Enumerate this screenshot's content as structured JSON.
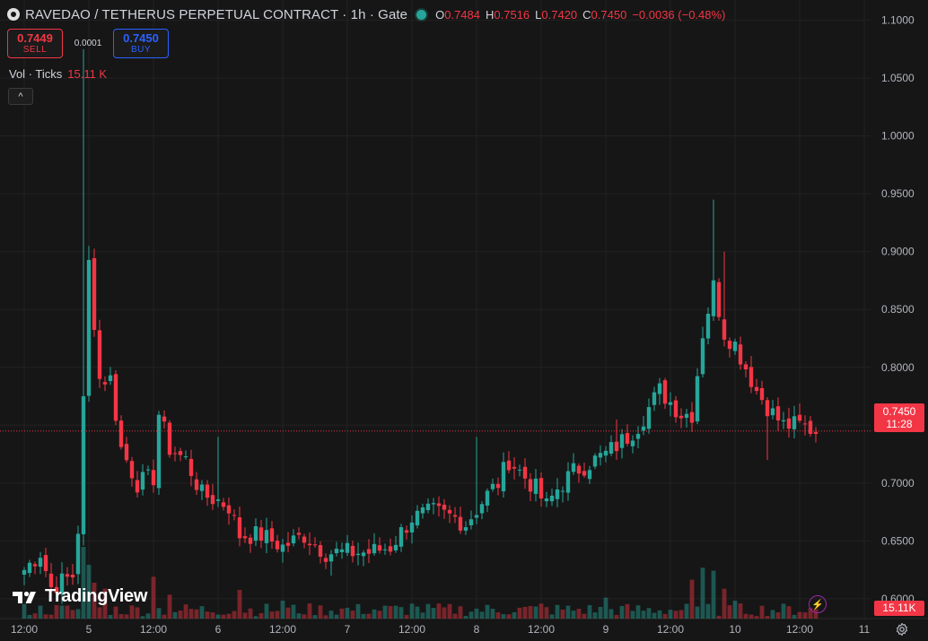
{
  "header": {
    "symbol": "RAVEDAO / TETHERUS PERPETUAL CONTRACT · 1h · Gate",
    "ohlc": {
      "o_label": "O",
      "o": "0.7484",
      "h_label": "H",
      "h": "0.7516",
      "l_label": "L",
      "l": "0.7420",
      "c_label": "C",
      "c": "0.7450",
      "change": "−0.0036 (−0.48%)"
    }
  },
  "trade": {
    "sell_price": "0.7449",
    "sell_label": "SELL",
    "spread": "0.0001",
    "buy_price": "0.7450",
    "buy_label": "BUY"
  },
  "volume_legend": {
    "label": "Vol · Ticks",
    "value": "15.11 K"
  },
  "collapse_icon": "^",
  "branding": {
    "name": "TradingView"
  },
  "price_tag": {
    "price": "0.7450",
    "countdown": "11:28"
  },
  "volume_tag": "15.11K",
  "colors": {
    "up": "#26a69a",
    "down": "#f23645",
    "background": "#161616",
    "grid": "#222222",
    "buy": "#2962ff"
  },
  "chart_data": {
    "type": "candlestick",
    "y_axis": {
      "scale": "linear",
      "ticks": [
        1.1,
        1.05,
        1.0,
        0.95,
        0.9,
        0.85,
        0.8,
        0.75,
        0.7,
        0.65,
        0.6
      ],
      "tick_labels": [
        "1.1000",
        "1.0500",
        "1.0000",
        "0.9500",
        "0.9000",
        "0.8500",
        "0.8000",
        "0.7500",
        "0.7000",
        "0.6500",
        "0.6000"
      ],
      "ylim": [
        0.5635,
        1.1175
      ]
    },
    "x_axis": {
      "labels": [
        "12:00",
        "5",
        "12:00",
        "6",
        "12:00",
        "7",
        "12:00",
        "8",
        "12:00",
        "9",
        "12:00",
        "10",
        "12:00",
        "11"
      ],
      "label_bar_index": [
        0,
        12,
        24,
        36,
        48,
        60,
        72,
        84,
        96,
        108,
        120,
        132,
        144,
        156
      ]
    },
    "last_price": 0.745,
    "grid": true,
    "waypoints": [
      [
        0,
        0.625
      ],
      [
        3,
        0.64
      ],
      [
        5,
        0.61
      ],
      [
        9,
        0.62
      ],
      [
        10,
        0.66
      ],
      [
        11,
        0.77
      ],
      [
        12,
        0.89
      ],
      [
        14,
        0.79
      ],
      [
        16,
        0.79
      ],
      [
        18,
        0.73
      ],
      [
        21,
        0.7
      ],
      [
        24,
        0.705
      ],
      [
        25,
        0.76
      ],
      [
        27,
        0.73
      ],
      [
        30,
        0.72
      ],
      [
        33,
        0.69
      ],
      [
        36,
        0.685
      ],
      [
        38,
        0.68
      ],
      [
        40,
        0.655
      ],
      [
        44,
        0.655
      ],
      [
        48,
        0.645
      ],
      [
        52,
        0.655
      ],
      [
        56,
        0.64
      ],
      [
        60,
        0.64
      ],
      [
        64,
        0.64
      ],
      [
        68,
        0.645
      ],
      [
        72,
        0.67
      ],
      [
        76,
        0.675
      ],
      [
        80,
        0.67
      ],
      [
        82,
        0.665
      ],
      [
        86,
        0.69
      ],
      [
        88,
        0.7
      ],
      [
        90,
        0.72
      ],
      [
        92,
        0.71
      ],
      [
        95,
        0.695
      ],
      [
        97,
        0.68
      ],
      [
        99,
        0.695
      ],
      [
        102,
        0.71
      ],
      [
        106,
        0.72
      ],
      [
        108,
        0.725
      ],
      [
        112,
        0.74
      ],
      [
        114,
        0.75
      ],
      [
        118,
        0.78
      ],
      [
        122,
        0.76
      ],
      [
        124,
        0.76
      ],
      [
        126,
        0.83
      ],
      [
        128,
        0.87
      ],
      [
        130,
        0.83
      ],
      [
        132,
        0.82
      ],
      [
        134,
        0.8
      ],
      [
        136,
        0.78
      ],
      [
        139,
        0.76
      ],
      [
        141,
        0.75
      ],
      [
        144,
        0.75
      ],
      [
        147,
        0.745
      ]
    ],
    "spikes": [
      [
        11,
        0.89,
        1.075
      ],
      [
        12,
        0.89,
        0.905
      ],
      [
        36,
        0.69,
        0.74
      ],
      [
        45,
        0.655,
        0.67
      ],
      [
        57,
        0.635,
        0.62
      ],
      [
        84,
        0.695,
        0.74
      ],
      [
        110,
        0.74,
        0.755
      ],
      [
        128,
        0.88,
        0.945
      ],
      [
        130,
        0.86,
        0.9
      ],
      [
        138,
        0.76,
        0.72
      ]
    ],
    "volume": {
      "axis_max": 15,
      "peaks": [
        [
          11,
          12.0
        ],
        [
          12,
          9.0
        ],
        [
          13,
          6.0
        ],
        [
          15,
          5.0
        ],
        [
          24,
          7.0
        ],
        [
          27,
          4.0
        ],
        [
          40,
          4.8
        ],
        [
          48,
          3.0
        ],
        [
          72,
          2.5
        ],
        [
          96,
          2.5
        ],
        [
          108,
          3.5
        ],
        [
          124,
          6.5
        ],
        [
          126,
          8.5
        ],
        [
          128,
          8.0
        ],
        [
          130,
          5.0
        ],
        [
          132,
          3.0
        ]
      ]
    }
  }
}
